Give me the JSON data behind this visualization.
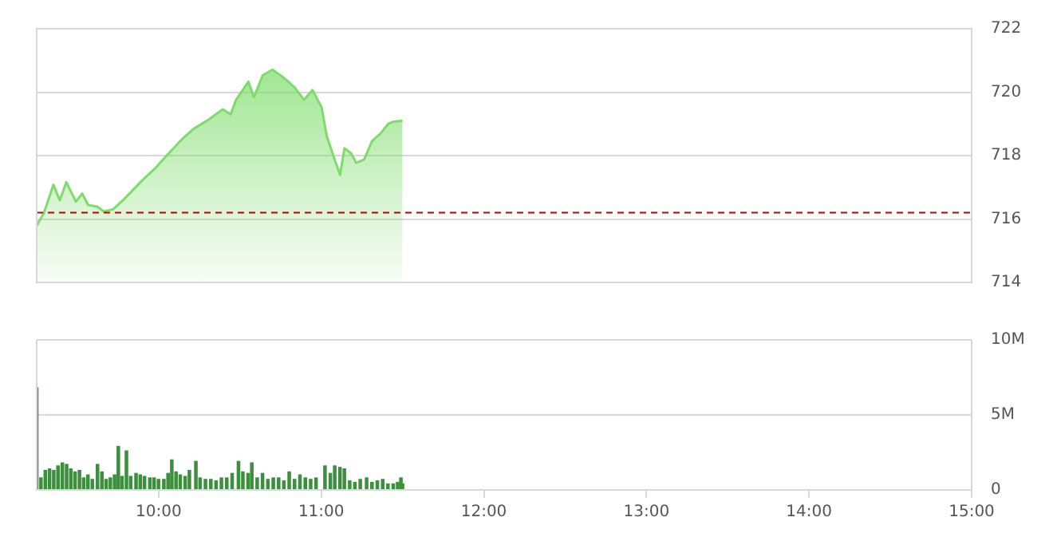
{
  "chart_data": [
    {
      "type": "area",
      "x": [
        9.25,
        9.294,
        9.353,
        9.392,
        9.432,
        9.491,
        9.53,
        9.567,
        9.623,
        9.662,
        9.721,
        9.786,
        9.901,
        9.983,
        10.049,
        10.148,
        10.214,
        10.312,
        10.394,
        10.443,
        10.476,
        10.552,
        10.586,
        10.64,
        10.7,
        10.771,
        10.837,
        10.894,
        10.946,
        11.002,
        11.034,
        11.084,
        11.116,
        11.143,
        11.182,
        11.215,
        11.264,
        11.313,
        11.363,
        11.412,
        11.446,
        11.5
      ],
      "series": [
        {
          "color": "#7ddc6a",
          "values": [
            715.79,
            716.19,
            717.08,
            716.59,
            717.16,
            716.55,
            716.8,
            716.44,
            716.39,
            716.24,
            716.31,
            716.62,
            717.23,
            717.62,
            718.0,
            718.54,
            718.84,
            719.15,
            719.46,
            719.3,
            719.76,
            720.33,
            719.84,
            720.53,
            720.71,
            720.45,
            720.15,
            719.76,
            720.07,
            719.53,
            718.61,
            717.85,
            717.39,
            718.23,
            718.08,
            717.77,
            717.88,
            718.46,
            718.69,
            719.0,
            719.07,
            719.1
          ]
        }
      ],
      "xlim": [
        9.25,
        15
      ],
      "ylim": [
        714,
        722
      ],
      "yticks": [
        714,
        716,
        718,
        720,
        722
      ],
      "grid": "y",
      "tick_labels": "y",
      "ref_lines": [
        {
          "axis": "y",
          "value": 716.2,
          "color": "#c00000",
          "line_style": "dashed"
        }
      ]
    },
    {
      "type": "bar",
      "x": [
        9.25,
        9.276,
        9.303,
        9.329,
        9.355,
        9.381,
        9.408,
        9.434,
        9.46,
        9.486,
        9.513,
        9.539,
        9.565,
        9.592,
        9.624,
        9.651,
        9.677,
        9.703,
        9.729,
        9.752,
        9.775,
        9.802,
        9.828,
        9.861,
        9.887,
        9.913,
        9.946,
        9.972,
        9.999,
        10.032,
        10.058,
        10.081,
        10.107,
        10.133,
        10.163,
        10.189,
        10.229,
        10.255,
        10.288,
        10.321,
        10.353,
        10.386,
        10.419,
        10.452,
        10.491,
        10.518,
        10.55,
        10.573,
        10.606,
        10.639,
        10.672,
        10.705,
        10.738,
        10.77,
        10.803,
        10.836,
        10.869,
        10.902,
        10.935,
        10.968,
        11.023,
        11.056,
        11.083,
        11.115,
        11.142,
        11.175,
        11.207,
        11.24,
        11.279,
        11.312,
        11.345,
        11.378,
        11.41,
        11.443,
        11.47,
        11.49,
        11.5
      ],
      "series": [
        {
          "color": "#3c8f3c",
          "values": [
            6.8,
            0.8,
            1.3,
            1.4,
            1.3,
            1.6,
            1.8,
            1.7,
            1.4,
            1.2,
            1.3,
            0.8,
            1.0,
            0.7,
            1.7,
            1.2,
            0.7,
            0.8,
            1.0,
            2.9,
            0.9,
            2.6,
            0.9,
            1.1,
            1.0,
            0.9,
            0.8,
            0.8,
            0.7,
            0.7,
            1.1,
            2.0,
            1.2,
            1.0,
            0.9,
            1.3,
            1.9,
            0.8,
            0.7,
            0.7,
            0.6,
            0.8,
            0.8,
            1.1,
            1.9,
            1.2,
            1.1,
            1.8,
            0.8,
            1.1,
            0.7,
            0.8,
            0.8,
            0.6,
            1.2,
            0.7,
            1.0,
            0.8,
            0.7,
            0.8,
            1.6,
            1.1,
            1.6,
            1.5,
            1.4,
            0.6,
            0.5,
            0.7,
            0.8,
            0.5,
            0.6,
            0.7,
            0.4,
            0.4,
            0.5,
            0.8,
            0.4
          ]
        }
      ],
      "xlim": [
        9.25,
        15
      ],
      "xticks": [
        {
          "value": 10,
          "label": "10:00"
        },
        {
          "value": 11,
          "label": "11:00"
        },
        {
          "value": 12,
          "label": "12:00"
        },
        {
          "value": 13,
          "label": "13:00"
        },
        {
          "value": 14,
          "label": "14:00"
        },
        {
          "value": 15,
          "label": "15:00"
        }
      ],
      "ylim": [
        0,
        10
      ],
      "yticks": [
        0,
        {
          "value": 5,
          "label": "5M"
        },
        {
          "value": 10,
          "label": "10M"
        }
      ],
      "grid": "y"
    }
  ]
}
